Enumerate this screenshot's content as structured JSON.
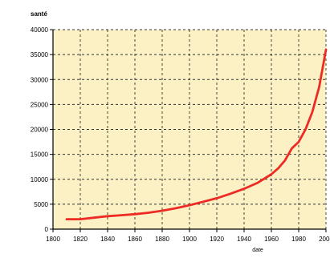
{
  "chart_data": {
    "type": "line",
    "title": "",
    "ylabel": "santé",
    "xlabel": "date",
    "xlim": [
      1800,
      2000
    ],
    "ylim": [
      0,
      40000
    ],
    "x_ticks": [
      1800,
      1820,
      1840,
      1860,
      1880,
      1900,
      1920,
      1940,
      1960,
      1980,
      2000
    ],
    "y_ticks": [
      0,
      5000,
      10000,
      15000,
      20000,
      25000,
      30000,
      35000,
      40000
    ],
    "grid": true,
    "background_color": "#fbf1c4",
    "line_color": "#ee2a24",
    "series": [
      {
        "x": [
          1810,
          1820,
          1830,
          1840,
          1850,
          1860,
          1870,
          1880,
          1890,
          1900,
          1910,
          1920,
          1930,
          1940,
          1950,
          1960,
          1965,
          1970,
          1975,
          1980,
          1985,
          1990,
          1995,
          2000
        ],
        "values": [
          2000,
          2000,
          2300,
          2600,
          2800,
          3000,
          3300,
          3700,
          4200,
          4800,
          5500,
          6200,
          7100,
          8100,
          9300,
          11000,
          12200,
          13800,
          16200,
          17500,
          20000,
          23500,
          28500,
          36000
        ]
      }
    ]
  }
}
